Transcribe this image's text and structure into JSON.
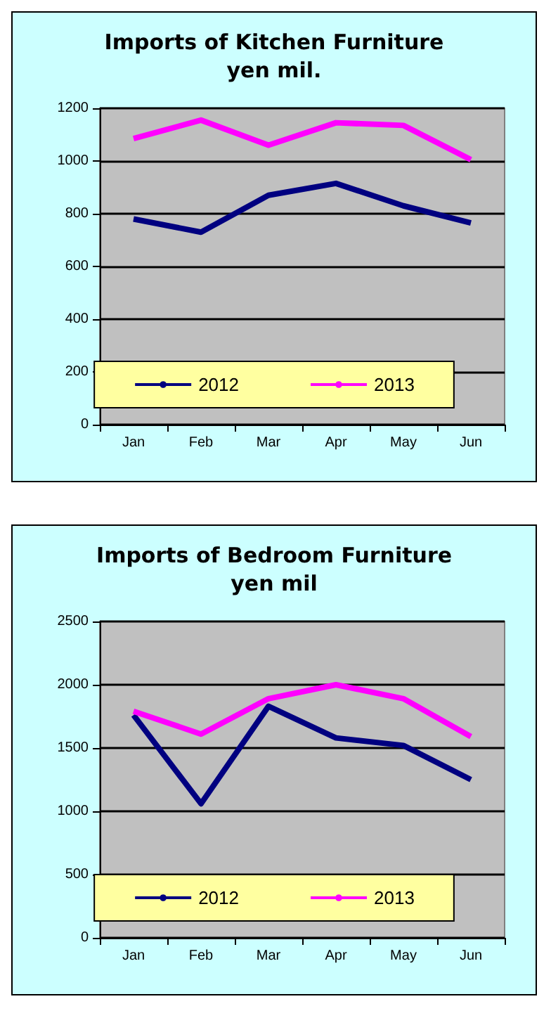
{
  "chart_data": [
    {
      "type": "line",
      "title": "Imports of Kitchen Furniture\nyen mil.",
      "categories": [
        "Jan",
        "Feb",
        "Mar",
        "Apr",
        "May",
        "Jun"
      ],
      "series": [
        {
          "name": "2012",
          "color": "#000080",
          "values": [
            780,
            730,
            870,
            915,
            830,
            765
          ]
        },
        {
          "name": "2013",
          "color": "#ff00ff",
          "values": [
            1085,
            1155,
            1060,
            1145,
            1135,
            1005
          ]
        }
      ],
      "ylim": [
        0,
        1200
      ],
      "yticks": [
        0,
        200,
        400,
        600,
        800,
        1000,
        1200
      ],
      "grid": "y",
      "legend": "bottom"
    },
    {
      "type": "line",
      "title": "Imports of Bedroom Furniture\nyen mil",
      "categories": [
        "Jan",
        "Feb",
        "Mar",
        "Apr",
        "May",
        "Jun"
      ],
      "series": [
        {
          "name": "2012",
          "color": "#000080",
          "values": [
            1760,
            1060,
            1830,
            1580,
            1520,
            1250
          ]
        },
        {
          "name": "2013",
          "color": "#ff00ff",
          "values": [
            1790,
            1610,
            1890,
            2000,
            1890,
            1590
          ]
        }
      ],
      "ylim": [
        0,
        2500
      ],
      "yticks": [
        0,
        500,
        1000,
        1500,
        2000,
        2500
      ],
      "grid": "y",
      "legend": "bottom"
    }
  ]
}
